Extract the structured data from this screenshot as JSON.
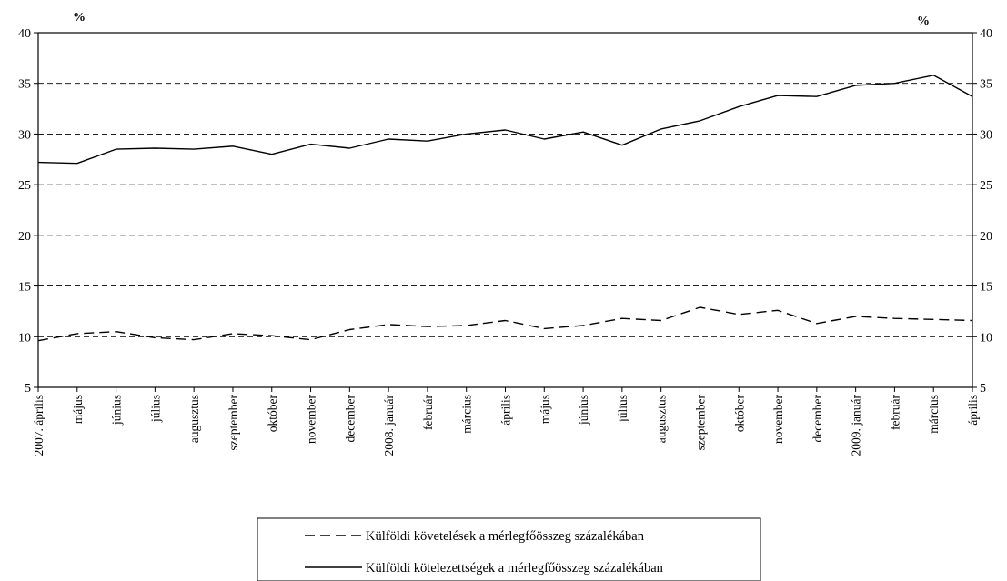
{
  "chart_data": {
    "type": "line",
    "left_unit": "%",
    "right_unit": "%",
    "ylim": [
      5,
      40
    ],
    "yticks": [
      5,
      10,
      15,
      20,
      25,
      30,
      35,
      40
    ],
    "grid": true,
    "categories": [
      "2007. április",
      "május",
      "június",
      "július",
      "augusztus",
      "szeptember",
      "október",
      "november",
      "december",
      "2008. január",
      "február",
      "március",
      "április",
      "május",
      "június",
      "július",
      "augusztus",
      "szeptember",
      "október",
      "november",
      "december",
      "2009. január",
      "február",
      "március",
      "április"
    ],
    "series": [
      {
        "name": "Külföldi követelések a mérlegfőösszeg százalékában",
        "style": "dashed",
        "values": [
          9.6,
          10.3,
          10.5,
          9.9,
          9.7,
          10.3,
          10.1,
          9.7,
          10.7,
          11.2,
          11.0,
          11.1,
          11.6,
          10.8,
          11.1,
          11.8,
          11.6,
          12.9,
          12.2,
          12.6,
          11.3,
          12.0,
          11.8,
          11.7,
          11.6
        ]
      },
      {
        "name": "Külföldi kötelezettségek a mérlegfőösszeg százalékában",
        "style": "solid",
        "values": [
          27.2,
          27.1,
          28.5,
          28.6,
          28.5,
          28.8,
          28.0,
          29.0,
          28.6,
          29.5,
          29.3,
          30.0,
          30.4,
          29.5,
          30.2,
          28.9,
          30.5,
          31.3,
          32.7,
          33.8,
          33.7,
          34.8,
          35.0,
          35.8,
          33.7
        ]
      }
    ]
  }
}
